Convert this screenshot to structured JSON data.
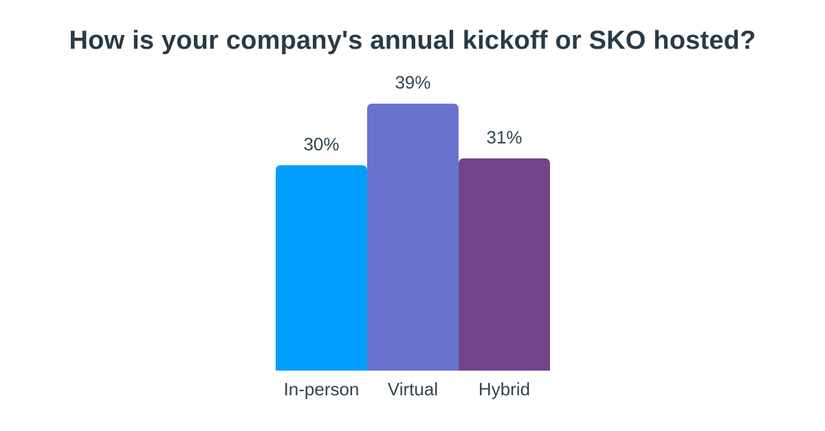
{
  "chart_data": {
    "type": "bar",
    "title": "How is your company's annual kickoff or SKO hosted?",
    "categories": [
      "In-person",
      "Virtual",
      "Hybrid"
    ],
    "values": [
      30,
      39,
      31
    ],
    "value_labels": [
      "30%",
      "39%",
      "31%"
    ],
    "unit": "%",
    "colors": [
      "#009ffd",
      "#6972cf",
      "#72458b"
    ],
    "ylim": [
      0,
      39
    ],
    "grid": false,
    "legend": "none",
    "xlabel": "",
    "ylabel": ""
  }
}
